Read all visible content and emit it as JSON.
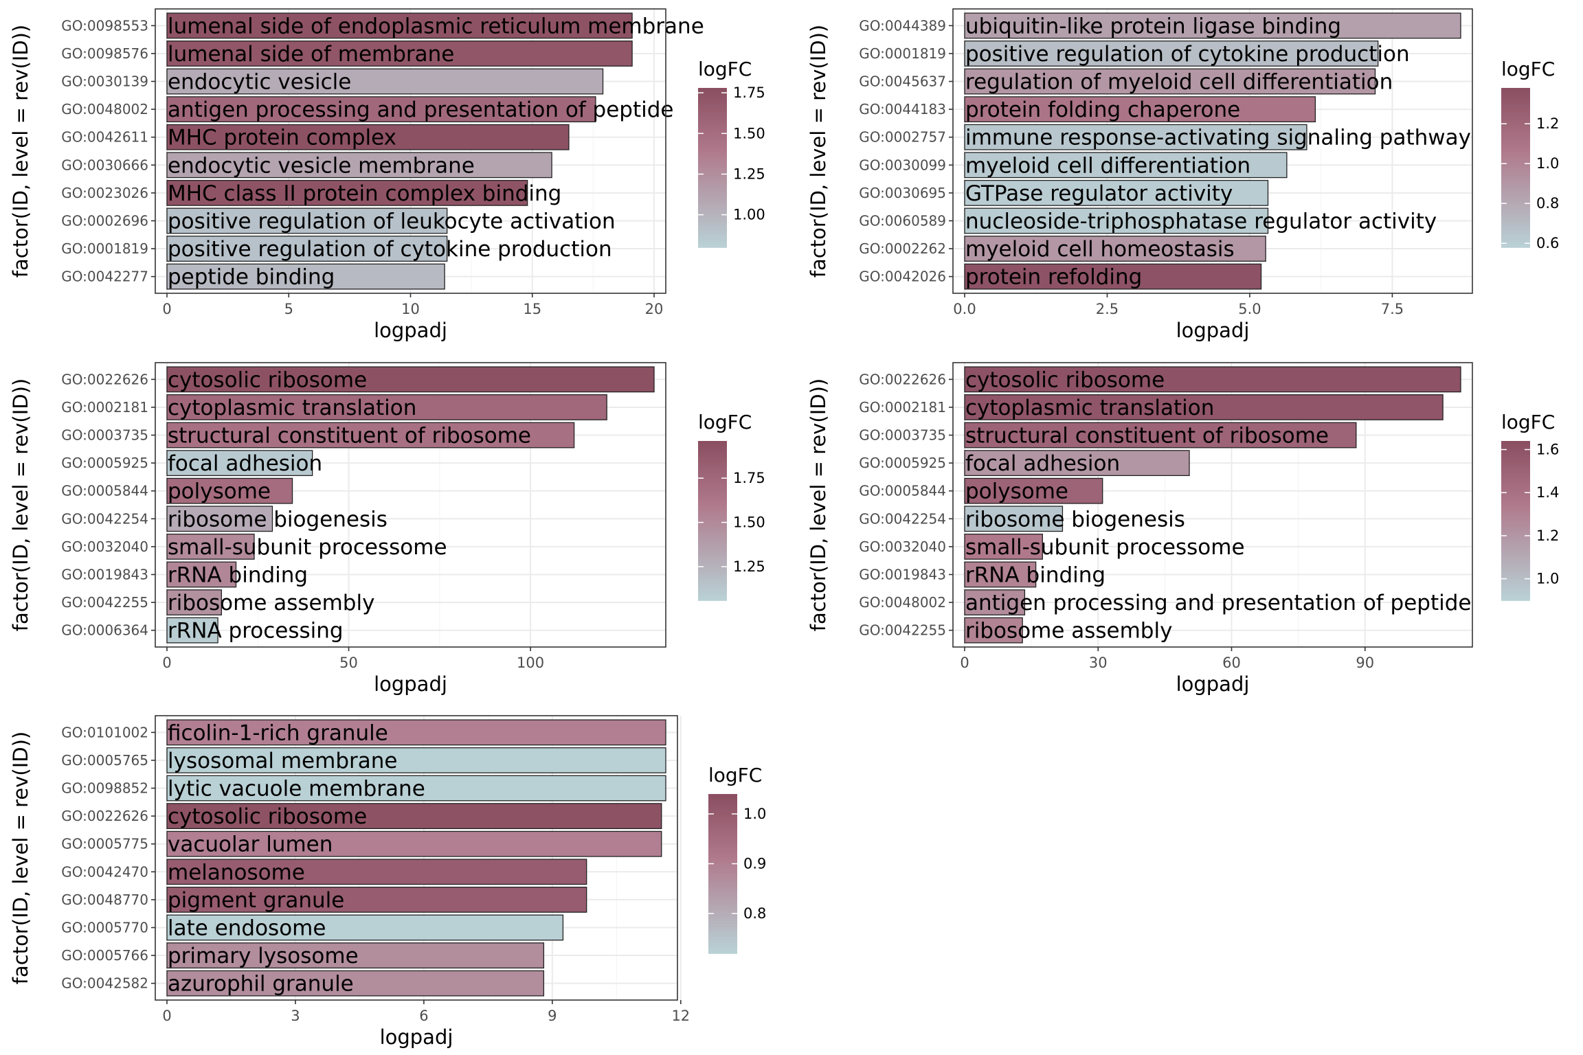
{
  "colors": {
    "low": "#b9d0d5",
    "mid": "#b07a8c",
    "high": "#8b4f62",
    "panel_border": "#333333",
    "grid": "#ebebeb"
  },
  "chart_data": [
    {
      "type": "bar",
      "orientation": "horizontal",
      "xlabel": "logpadj",
      "ylabel": "factor(ID, level = rev(ID))",
      "xlim": [
        0,
        20
      ],
      "x_ticks": [
        0,
        5,
        10,
        15,
        20
      ],
      "legend_title": "logFC",
      "color_range": [
        0.8,
        1.78
      ],
      "legend_ticks": [
        1.0,
        1.25,
        1.5,
        1.75
      ],
      "legend_tick_labels": [
        "1.00",
        "1.25",
        "1.50",
        "1.75"
      ],
      "ids": [
        "GO:0098553",
        "GO:0098576",
        "GO:0030139",
        "GO:0048002",
        "GO:0042611",
        "GO:0030666",
        "GO:0023026",
        "GO:0002696",
        "GO:0001819",
        "GO:0042277"
      ],
      "terms": [
        "lumenal side of endoplasmic reticulum membrane",
        "lumenal side of membrane",
        "endocytic vesicle",
        "antigen processing and presentation of peptide",
        "MHC protein complex",
        "endocytic vesicle membrane",
        "MHC class II protein complex binding",
        "positive regulation of leukocyte activation",
        "positive regulation of cytokine production",
        "peptide binding"
      ],
      "values": [
        19.1,
        19.1,
        17.9,
        17.6,
        16.5,
        15.8,
        14.8,
        11.5,
        11.5,
        11.4
      ],
      "logFC": [
        1.75,
        1.72,
        1.05,
        1.55,
        1.76,
        1.1,
        1.74,
        0.9,
        0.9,
        0.95
      ]
    },
    {
      "type": "bar",
      "orientation": "horizontal",
      "xlabel": "logpadj",
      "ylabel": "factor(ID, level = rev(ID))",
      "xlim": [
        0,
        8.7
      ],
      "x_ticks": [
        0,
        2.5,
        5.0,
        7.5
      ],
      "x_tick_labels": [
        "0.0",
        "2.5",
        "5.0",
        "7.5"
      ],
      "legend_title": "logFC",
      "color_range": [
        0.58,
        1.38
      ],
      "legend_ticks": [
        0.6,
        0.8,
        1.0,
        1.2
      ],
      "legend_tick_labels": [
        "0.6",
        "0.8",
        "1.0",
        "1.2"
      ],
      "ids": [
        "GO:0044389",
        "GO:0001819",
        "GO:0045637",
        "GO:0044183",
        "GO:0002757",
        "GO:0030099",
        "GO:0030695",
        "GO:0060589",
        "GO:0002262",
        "GO:0042026"
      ],
      "terms": [
        "ubiquitin-like protein ligase binding",
        "positive regulation of cytokine production",
        "regulation of myeloid cell differentiation",
        "protein folding chaperone",
        "immune response-activating signaling pathway",
        "myeloid cell differentiation",
        "GTPase regulator activity",
        "nucleoside-triphosphatase regulator activity",
        "myeloid cell homeostasis",
        "protein refolding"
      ],
      "values": [
        8.7,
        7.25,
        7.2,
        6.15,
        6.0,
        5.65,
        5.32,
        5.32,
        5.28,
        5.2
      ],
      "logFC": [
        0.85,
        0.68,
        0.9,
        1.1,
        0.63,
        0.62,
        0.6,
        0.6,
        0.9,
        1.36
      ]
    },
    {
      "type": "bar",
      "orientation": "horizontal",
      "xlabel": "logpadj",
      "ylabel": "factor(ID, level = rev(ID))",
      "xlim": [
        0,
        134
      ],
      "x_ticks": [
        0,
        50,
        100
      ],
      "legend_title": "logFC",
      "color_range": [
        1.06,
        1.96
      ],
      "legend_ticks": [
        1.25,
        1.5,
        1.75
      ],
      "legend_tick_labels": [
        "1.25",
        "1.50",
        "1.75"
      ],
      "ids": [
        "GO:0022626",
        "GO:0002181",
        "GO:0003735",
        "GO:0005925",
        "GO:0005844",
        "GO:0042254",
        "GO:0032040",
        "GO:0019843",
        "GO:0042255",
        "GO:0006364"
      ],
      "terms": [
        "cytosolic ribosome",
        "cytoplasmic translation",
        "structural constituent of ribosome",
        "focal adhesion",
        "polysome",
        "ribosome biogenesis",
        "small-subunit processome",
        "rRNA binding",
        "ribosome assembly",
        "rRNA processing"
      ],
      "values": [
        134,
        121,
        112,
        40,
        34.5,
        29,
        24,
        19,
        15,
        14
      ],
      "logFC": [
        1.94,
        1.75,
        1.68,
        1.1,
        1.72,
        1.3,
        1.5,
        1.52,
        1.45,
        1.08
      ]
    },
    {
      "type": "bar",
      "orientation": "horizontal",
      "xlabel": "logpadj",
      "ylabel": "factor(ID, level = rev(ID))",
      "xlim": [
        0,
        111.5
      ],
      "x_ticks": [
        0,
        30,
        60,
        90
      ],
      "legend_title": "logFC",
      "color_range": [
        0.9,
        1.64
      ],
      "legend_ticks": [
        1.0,
        1.2,
        1.4,
        1.6
      ],
      "legend_tick_labels": [
        "1.0",
        "1.2",
        "1.4",
        "1.6"
      ],
      "ids": [
        "GO:0022626",
        "GO:0002181",
        "GO:0003735",
        "GO:0005925",
        "GO:0005844",
        "GO:0042254",
        "GO:0032040",
        "GO:0019843",
        "GO:0048002",
        "GO:0042255"
      ],
      "terms": [
        "cytosolic ribosome",
        "cytoplasmic translation",
        "structural constituent of ribosome",
        "focal adhesion",
        "polysome",
        "ribosome biogenesis",
        "small-subunit processome",
        "rRNA binding",
        "antigen processing and presentation of peptide",
        "ribosome assembly"
      ],
      "values": [
        111.5,
        107.5,
        88,
        50.5,
        31,
        22,
        17.5,
        16,
        13.5,
        13
      ],
      "logFC": [
        1.62,
        1.6,
        1.5,
        1.2,
        1.5,
        0.95,
        1.35,
        1.3,
        1.25,
        1.3
      ]
    },
    {
      "type": "bar",
      "orientation": "horizontal",
      "xlabel": "logpadj",
      "ylabel": "factor(ID, level = rev(ID))",
      "xlim": [
        0,
        11.65
      ],
      "x_ticks": [
        0,
        3,
        6,
        9,
        12
      ],
      "legend_title": "logFC",
      "color_range": [
        0.72,
        1.04
      ],
      "legend_ticks": [
        0.8,
        0.9,
        1.0
      ],
      "legend_tick_labels": [
        "0.8",
        "0.9",
        "1.0"
      ],
      "ids": [
        "GO:0101002",
        "GO:0005765",
        "GO:0098852",
        "GO:0022626",
        "GO:0005775",
        "GO:0042470",
        "GO:0048770",
        "GO:0005770",
        "GO:0005766",
        "GO:0042582"
      ],
      "terms": [
        "ficolin-1-rich granule",
        "lysosomal membrane",
        "lytic vacuole membrane",
        "cytosolic ribosome",
        "vacuolar lumen",
        "melanosome",
        "pigment granule",
        "late endosome",
        "primary lysosome",
        "azurophil granule"
      ],
      "values": [
        11.65,
        11.65,
        11.65,
        11.55,
        11.55,
        9.8,
        9.8,
        9.25,
        8.8,
        8.8
      ],
      "logFC": [
        0.9,
        0.72,
        0.72,
        1.03,
        0.9,
        1.0,
        1.0,
        0.72,
        0.87,
        0.87
      ]
    }
  ]
}
